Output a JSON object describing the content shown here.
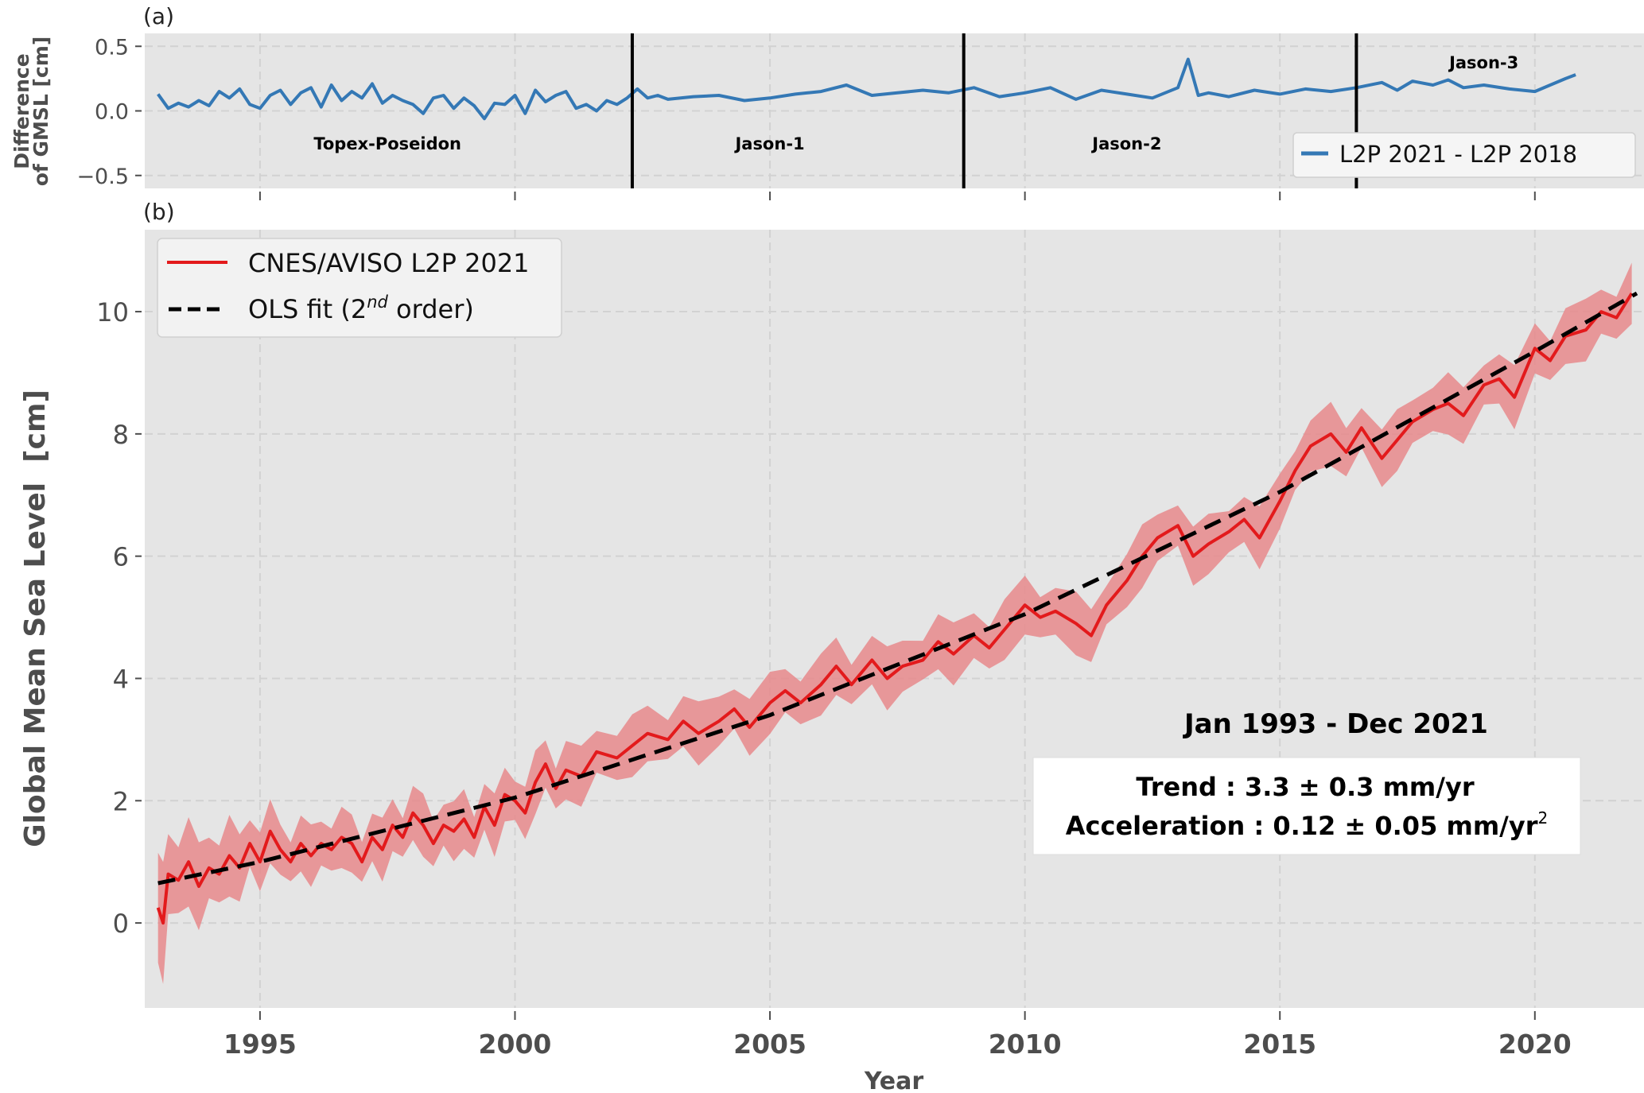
{
  "chart_data": [
    {
      "id": "a",
      "panel_label": "(a)",
      "type": "line",
      "ylabel_lines": [
        "Difference",
        "of GMSL [cm]"
      ],
      "xlabel": "",
      "xlim": [
        1992.74,
        2022.14
      ],
      "ylim": [
        -0.6,
        0.6
      ],
      "yticks": [
        0.5,
        0.0,
        -0.5
      ],
      "ytick_labels": [
        "0.5",
        "0.0",
        "−0.5"
      ],
      "xticks": [
        1995,
        2000,
        2005,
        2010,
        2015,
        2020
      ],
      "grid": true,
      "legend": {
        "position": "lower-right",
        "entries": [
          {
            "label": "L2P 2021 - L2P 2018",
            "color": "#3478b5",
            "style": "solid"
          }
        ]
      },
      "mission_boundaries": [
        2002.3,
        2008.8,
        2016.5
      ],
      "mission_labels": [
        {
          "text": "Topex-Poseidon",
          "x": 1997.5,
          "y": -0.25
        },
        {
          "text": "Jason-1",
          "x": 2005.0,
          "y": -0.25
        },
        {
          "text": "Jason-2",
          "x": 2012.0,
          "y": -0.25
        },
        {
          "text": "Jason-3",
          "x": 2019.0,
          "y": 0.38
        }
      ],
      "series": [
        {
          "name": "L2P 2021 - L2P 2018",
          "color": "#3478b5",
          "x": [
            1993.0,
            1993.2,
            1993.4,
            1993.6,
            1993.8,
            1994.0,
            1994.2,
            1994.4,
            1994.6,
            1994.8,
            1995.0,
            1995.2,
            1995.4,
            1995.6,
            1995.8,
            1996.0,
            1996.2,
            1996.4,
            1996.6,
            1996.8,
            1997.0,
            1997.2,
            1997.4,
            1997.6,
            1997.8,
            1998.0,
            1998.2,
            1998.4,
            1998.6,
            1998.8,
            1999.0,
            1999.2,
            1999.4,
            1999.6,
            1999.8,
            2000.0,
            2000.2,
            2000.4,
            2000.6,
            2000.8,
            2001.0,
            2001.2,
            2001.4,
            2001.6,
            2001.8,
            2002.0,
            2002.2,
            2002.4,
            2002.6,
            2002.8,
            2003.0,
            2003.5,
            2004.0,
            2004.5,
            2005.0,
            2005.5,
            2006.0,
            2006.5,
            2007.0,
            2007.5,
            2008.0,
            2008.5,
            2009.0,
            2009.5,
            2010.0,
            2010.5,
            2011.0,
            2011.5,
            2012.0,
            2012.5,
            2013.0,
            2013.2,
            2013.4,
            2013.6,
            2014.0,
            2014.5,
            2015.0,
            2015.5,
            2016.0,
            2016.5,
            2017.0,
            2017.3,
            2017.6,
            2018.0,
            2018.3,
            2018.6,
            2019.0,
            2019.5,
            2020.0,
            2020.3,
            2020.6,
            2020.8
          ],
          "y": [
            0.13,
            0.02,
            0.06,
            0.03,
            0.08,
            0.04,
            0.15,
            0.1,
            0.17,
            0.05,
            0.02,
            0.12,
            0.16,
            0.05,
            0.14,
            0.18,
            0.03,
            0.2,
            0.08,
            0.15,
            0.1,
            0.21,
            0.06,
            0.12,
            0.08,
            0.05,
            -0.02,
            0.1,
            0.12,
            0.02,
            0.1,
            0.04,
            -0.06,
            0.06,
            0.05,
            0.12,
            -0.02,
            0.16,
            0.07,
            0.12,
            0.15,
            0.02,
            0.05,
            0.0,
            0.08,
            0.05,
            0.1,
            0.17,
            0.1,
            0.12,
            0.09,
            0.11,
            0.12,
            0.08,
            0.1,
            0.13,
            0.15,
            0.2,
            0.12,
            0.14,
            0.16,
            0.14,
            0.18,
            0.11,
            0.14,
            0.18,
            0.09,
            0.16,
            0.13,
            0.1,
            0.18,
            0.4,
            0.12,
            0.14,
            0.11,
            0.16,
            0.13,
            0.17,
            0.15,
            0.18,
            0.22,
            0.16,
            0.23,
            0.2,
            0.24,
            0.18,
            0.2,
            0.17,
            0.15,
            0.2,
            0.25,
            0.28
          ]
        }
      ]
    },
    {
      "id": "b",
      "panel_label": "(b)",
      "type": "line",
      "xlabel": "Year",
      "ylabel": "Global Mean Sea Level  [cm]",
      "xlim": [
        1992.74,
        2022.14
      ],
      "ylim": [
        -1.39,
        11.34
      ],
      "xticks": [
        1995,
        2000,
        2005,
        2010,
        2015,
        2020
      ],
      "xtick_labels": [
        "1995",
        "2000",
        "2005",
        "2010",
        "2015",
        "2020"
      ],
      "yticks": [
        0,
        2,
        4,
        6,
        8,
        10
      ],
      "ytick_labels": [
        "0",
        "2",
        "4",
        "6",
        "8",
        "10"
      ],
      "grid": true,
      "legend": {
        "position": "upper-left",
        "entries": [
          {
            "label": "CNES/AVISO L2P 2021",
            "color": "#e31a1c",
            "style": "solid"
          },
          {
            "label_main": "OLS fit (2",
            "label_sup": "nd",
            "label_end": " order)",
            "color": "#000000",
            "style": "dashed"
          }
        ]
      },
      "annotation": {
        "period": "Jan 1993 - Dec 2021",
        "trend": "Trend : 3.3 ± 0.3 mm/yr",
        "acceleration_main": "Acceleration : 0.12 ± 0.05 mm/yr",
        "acceleration_sup": "2"
      },
      "series": [
        {
          "name": "CNES/AVISO L2P 2021",
          "color": "#e31a1c",
          "uncertainty_color": "#e88a8c",
          "x": [
            1993.0,
            1993.1,
            1993.2,
            1993.4,
            1993.6,
            1993.8,
            1994.0,
            1994.2,
            1994.4,
            1994.6,
            1994.8,
            1995.0,
            1995.2,
            1995.4,
            1995.6,
            1995.8,
            1996.0,
            1996.2,
            1996.4,
            1996.6,
            1996.8,
            1997.0,
            1997.2,
            1997.4,
            1997.6,
            1997.8,
            1998.0,
            1998.2,
            1998.4,
            1998.6,
            1998.8,
            1999.0,
            1999.2,
            1999.4,
            1999.6,
            1999.8,
            2000.0,
            2000.2,
            2000.4,
            2000.6,
            2000.8,
            2001.0,
            2001.3,
            2001.6,
            2002.0,
            2002.3,
            2002.6,
            2003.0,
            2003.3,
            2003.6,
            2004.0,
            2004.3,
            2004.6,
            2005.0,
            2005.3,
            2005.6,
            2006.0,
            2006.3,
            2006.6,
            2007.0,
            2007.3,
            2007.6,
            2008.0,
            2008.3,
            2008.6,
            2009.0,
            2009.3,
            2009.6,
            2010.0,
            2010.3,
            2010.6,
            2011.0,
            2011.3,
            2011.6,
            2012.0,
            2012.3,
            2012.6,
            2013.0,
            2013.3,
            2013.6,
            2014.0,
            2014.3,
            2014.6,
            2015.0,
            2015.3,
            2015.6,
            2016.0,
            2016.3,
            2016.6,
            2017.0,
            2017.3,
            2017.6,
            2018.0,
            2018.3,
            2018.6,
            2019.0,
            2019.3,
            2019.6,
            2020.0,
            2020.3,
            2020.6,
            2021.0,
            2021.3,
            2021.6,
            2021.9
          ],
          "y": [
            0.25,
            0.0,
            0.8,
            0.7,
            1.0,
            0.6,
            0.9,
            0.8,
            1.1,
            0.9,
            1.3,
            1.0,
            1.5,
            1.2,
            1.0,
            1.3,
            1.1,
            1.3,
            1.2,
            1.4,
            1.3,
            1.0,
            1.4,
            1.2,
            1.6,
            1.4,
            1.8,
            1.6,
            1.3,
            1.6,
            1.5,
            1.7,
            1.4,
            1.9,
            1.6,
            2.1,
            2.0,
            1.8,
            2.3,
            2.6,
            2.2,
            2.5,
            2.4,
            2.8,
            2.7,
            2.9,
            3.1,
            3.0,
            3.3,
            3.1,
            3.3,
            3.5,
            3.2,
            3.6,
            3.8,
            3.6,
            3.9,
            4.2,
            3.9,
            4.3,
            4.0,
            4.2,
            4.3,
            4.6,
            4.4,
            4.7,
            4.5,
            4.8,
            5.2,
            5.0,
            5.1,
            4.9,
            4.7,
            5.2,
            5.6,
            6.0,
            6.3,
            6.5,
            6.0,
            6.2,
            6.4,
            6.6,
            6.3,
            6.9,
            7.4,
            7.8,
            8.0,
            7.7,
            8.1,
            7.6,
            7.9,
            8.2,
            8.4,
            8.5,
            8.3,
            8.8,
            8.9,
            8.6,
            9.4,
            9.2,
            9.6,
            9.7,
            10.0,
            9.9,
            10.3
          ],
          "uncertainty_halfwidth": [
            0.9,
            0.8,
            0.7,
            0.7,
            0.65,
            0.6,
            0.6,
            0.55,
            0.55,
            0.5,
            0.5,
            0.5
          ]
        },
        {
          "name": "OLS fit (2nd order)",
          "color": "#000000",
          "style": "dashed",
          "x": [
            1993.0,
            1995.0,
            2000.0,
            2005.0,
            2010.0,
            2015.0,
            2020.0,
            2022.0
          ],
          "y": [
            0.65,
            1.0,
            2.05,
            3.4,
            5.05,
            7.05,
            9.35,
            10.3
          ]
        }
      ]
    }
  ]
}
